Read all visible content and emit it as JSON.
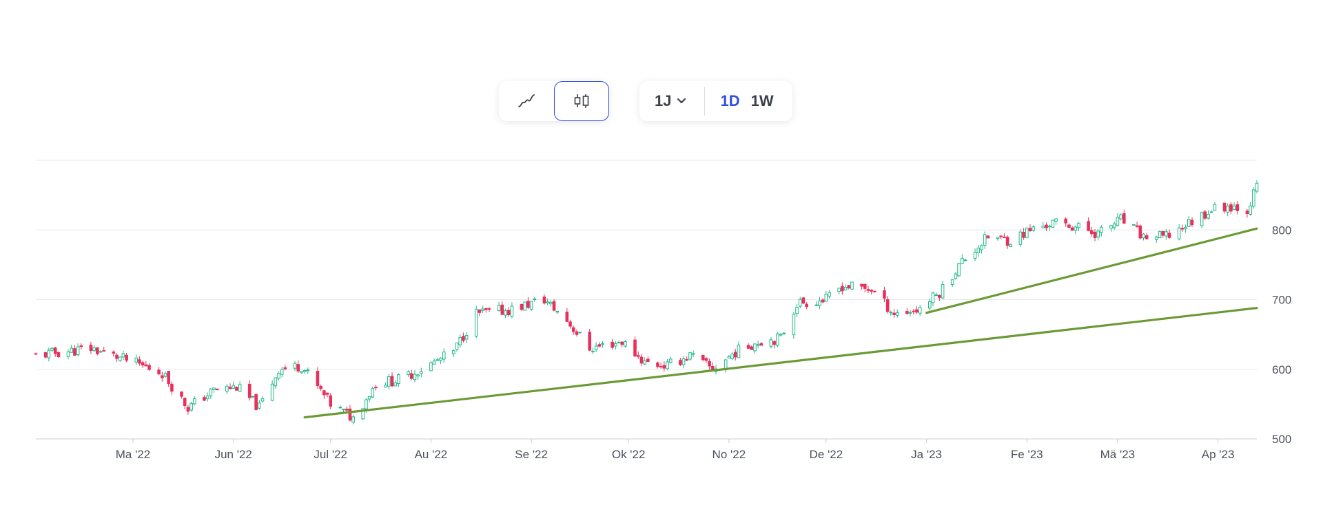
{
  "toolbar": {
    "chart_types": [
      {
        "name": "line-chart-icon",
        "active": false
      },
      {
        "name": "candlestick-icon",
        "active": true
      }
    ],
    "range": {
      "label": "1J"
    },
    "intervals": [
      {
        "label": "1D",
        "active": true
      },
      {
        "label": "1W",
        "active": false
      }
    ]
  },
  "colors": {
    "up": "#1fb98a",
    "down": "#e8305a",
    "trendline": "#6a9a34",
    "accent": "#2f4fe0",
    "grid": "#e6e8ec"
  },
  "chart_data": {
    "type": "candlestick",
    "xlabel": "",
    "ylabel": "",
    "ylim": [
      500,
      900
    ],
    "grid": true,
    "y_ticks": [
      "500",
      "600",
      "700",
      "800"
    ],
    "x_range": [
      "2022-04-01",
      "2023-04-13"
    ],
    "x_ticks": [
      {
        "date": "2022-05-01",
        "label": "Ma '22"
      },
      {
        "date": "2022-06-01",
        "label": "Jun '22"
      },
      {
        "date": "2022-07-01",
        "label": "Jul '22"
      },
      {
        "date": "2022-08-01",
        "label": "Au '22"
      },
      {
        "date": "2022-09-01",
        "label": "Se '22"
      },
      {
        "date": "2022-10-01",
        "label": "Ok '22"
      },
      {
        "date": "2022-11-01",
        "label": "No '22"
      },
      {
        "date": "2022-12-01",
        "label": "De '22"
      },
      {
        "date": "2023-01-01",
        "label": "Ja '23"
      },
      {
        "date": "2023-02-01",
        "label": "Fe '23"
      },
      {
        "date": "2023-03-01",
        "label": "Mä '23"
      },
      {
        "date": "2023-04-01",
        "label": "Ap '23"
      }
    ],
    "close_path": [
      [
        "2022-04-01",
        620
      ],
      [
        "2022-04-18",
        630
      ],
      [
        "2022-04-28",
        615
      ],
      [
        "2022-05-10",
        595
      ],
      [
        "2022-05-18",
        545
      ],
      [
        "2022-05-26",
        570
      ],
      [
        "2022-06-02",
        575
      ],
      [
        "2022-06-09",
        545
      ],
      [
        "2022-06-15",
        600
      ],
      [
        "2022-06-22",
        605
      ],
      [
        "2022-07-01",
        550
      ],
      [
        "2022-07-08",
        530
      ],
      [
        "2022-07-15",
        580
      ],
      [
        "2022-07-22",
        585
      ],
      [
        "2022-07-29",
        600
      ],
      [
        "2022-08-08",
        625
      ],
      [
        "2022-08-15",
        680
      ],
      [
        "2022-08-25",
        685
      ],
      [
        "2022-09-05",
        700
      ],
      [
        "2022-09-12",
        670
      ],
      [
        "2022-09-19",
        630
      ],
      [
        "2022-09-29",
        640
      ],
      [
        "2022-10-06",
        610
      ],
      [
        "2022-10-13",
        605
      ],
      [
        "2022-10-20",
        620
      ],
      [
        "2022-10-27",
        600
      ],
      [
        "2022-11-03",
        625
      ],
      [
        "2022-11-10",
        640
      ],
      [
        "2022-11-17",
        645
      ],
      [
        "2022-11-22",
        695
      ],
      [
        "2022-12-01",
        700
      ],
      [
        "2022-12-06",
        720
      ],
      [
        "2022-12-15",
        715
      ],
      [
        "2022-12-22",
        680
      ],
      [
        "2022-12-29",
        685
      ],
      [
        "2023-01-05",
        710
      ],
      [
        "2023-01-12",
        755
      ],
      [
        "2023-01-20",
        790
      ],
      [
        "2023-01-27",
        785
      ],
      [
        "2023-02-02",
        800
      ],
      [
        "2023-02-09",
        810
      ],
      [
        "2023-02-16",
        805
      ],
      [
        "2023-02-23",
        795
      ],
      [
        "2023-03-02",
        815
      ],
      [
        "2023-03-09",
        790
      ],
      [
        "2023-03-16",
        790
      ],
      [
        "2023-03-23",
        810
      ],
      [
        "2023-03-30",
        830
      ],
      [
        "2023-04-05",
        835
      ],
      [
        "2023-04-10",
        830
      ],
      [
        "2023-04-13",
        862
      ]
    ],
    "trendlines": [
      {
        "start": [
          "2022-06-23",
          531
        ],
        "end": [
          "2023-04-13",
          688
        ]
      },
      {
        "start": [
          "2023-01-01",
          681
        ],
        "end": [
          "2023-04-13",
          802
        ]
      }
    ]
  }
}
